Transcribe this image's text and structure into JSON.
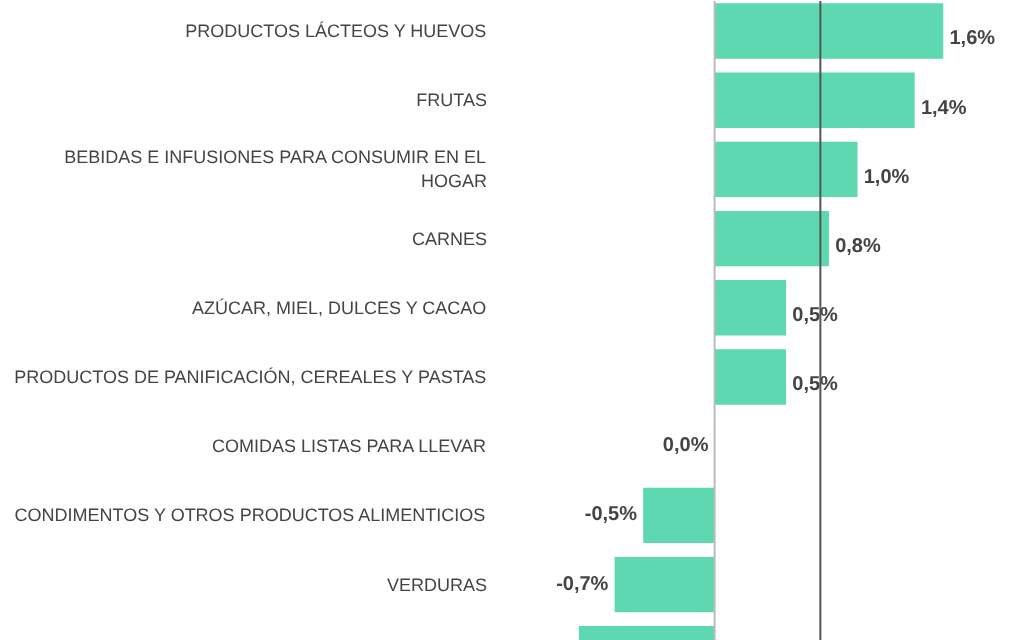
{
  "chart_data": {
    "type": "bar",
    "orientation": "horizontal",
    "relative": false,
    "categories": [
      "PRODUCTOS LÁCTEOS Y HUEVOS",
      "FRUTAS",
      "BEBIDAS E INFUSIONES PARA CONSUMIR EN EL HOGAR",
      "CARNES",
      "AZÚCAR, MIEL, DULCES Y CACAO",
      "PRODUCTOS DE PANIFICACIÓN, CEREALES Y PASTAS",
      "COMIDAS LISTAS PARA LLEVAR",
      "CONDIMENTOS Y OTROS PRODUCTOS ALIMENTICIOS",
      "VERDURAS",
      null
    ],
    "values": [
      1.6,
      1.4,
      1.0,
      0.8,
      0.5,
      0.5,
      0.0,
      -0.5,
      -0.7,
      -0.95
    ],
    "value_labels": [
      "1,6%",
      "1,4%",
      "1,0%",
      "0,8%",
      "0,5%",
      "0,5%",
      "0,0%",
      "-0,5%",
      "-0,7%",
      null
    ],
    "color": "#5dd8b0",
    "ref_lines": [
      {
        "axis": "x",
        "value": 0.74,
        "color": "#555555"
      }
    ],
    "grid": false
  }
}
